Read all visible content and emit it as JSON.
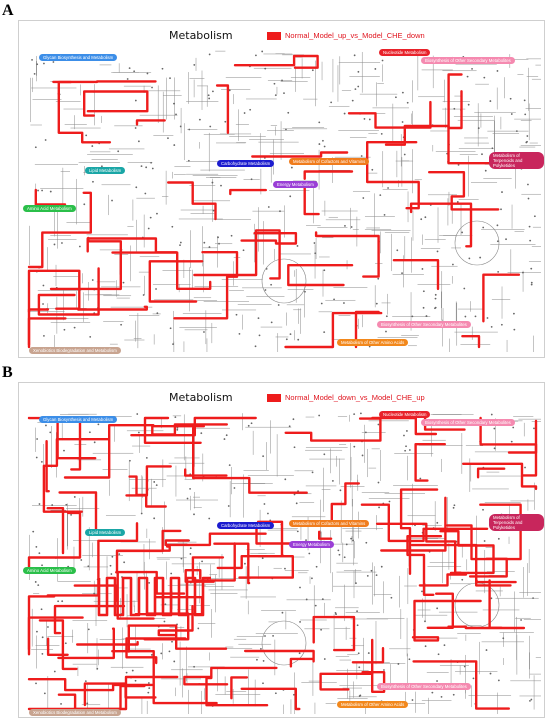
{
  "panels": [
    {
      "letter": "A",
      "title": "Metabolism",
      "legend_label": "Normal_Model_up_vs_Model_CHE_down",
      "legend_color": "#ee1c1c",
      "category_labels": [
        "Glycan Biosynthesis and Metabolism",
        "Nucleotide Metabolism",
        "Biosynthesis of Other Secondary Metabolites",
        "Lipid Metabolism",
        "Carbohydrate Metabolism",
        "Energy Metabolism",
        "Amino Acid Metabolism",
        "Metabolism of Terpenoids and Polyketides",
        "Metabolism of Cofactors and Vitamins",
        "Metabolism of Other Amino Acids",
        "Xenobiotics Biodegradation and Metabolism",
        "Biosynthesis of Other Secondary Metabolites"
      ]
    },
    {
      "letter": "B",
      "title": "Metabolism",
      "legend_label": "Normal_Model_down_vs_Model_CHE_up",
      "legend_color": "#ee1c1c",
      "category_labels": [
        "Glycan Biosynthesis and Metabolism",
        "Nucleotide Metabolism",
        "Biosynthesis of Other Secondary Metabolites",
        "Lipid Metabolism",
        "Carbohydrate Metabolism",
        "Energy Metabolism",
        "Amino Acid Metabolism",
        "Metabolism of Terpenoids and Polyketides",
        "Metabolism of Cofactors and Vitamins",
        "Metabolism of Other Amino Acids",
        "Xenobiotics Biodegradation and Metabolism",
        "Biosynthesis of Other Secondary Metabolites"
      ]
    }
  ],
  "colors": {
    "glycan": "#3c8ee8",
    "nucleotide": "#e8222a",
    "secondary": "#f58ab0",
    "lipid": "#1aa6a6",
    "carbohydrate": "#1c1ccf",
    "energy": "#9a3fd6",
    "amino_acid": "#2bbf4a",
    "terpenoid": "#c8265c",
    "cofactor": "#f07c1c",
    "other_amino": "#f2881c",
    "xenobiotics": "#c8a490",
    "pathway_red": "#ee1c1c",
    "network_grey": "#8a8a8a"
  }
}
